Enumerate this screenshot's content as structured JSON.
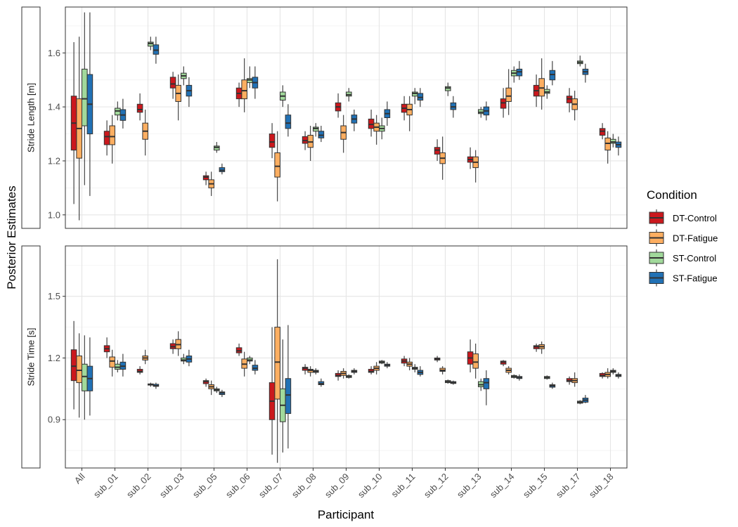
{
  "chart_data": {
    "type": "boxplot",
    "xlabel": "Participant",
    "ylabel": "Posterior Estimates",
    "categories": [
      "All",
      "sub_01",
      "sub_02",
      "sub_03",
      "sub_05",
      "sub_06",
      "sub_07",
      "sub_08",
      "sub_09",
      "sub_10",
      "sub_11",
      "sub_12",
      "sub_13",
      "sub_14",
      "sub_15",
      "sub_17",
      "sub_18"
    ],
    "series_names": [
      "DT-Control",
      "DT-Fatigue",
      "ST-Control",
      "ST-Fatigue"
    ],
    "legend": {
      "title": "Condition",
      "position": "right",
      "entries": [
        {
          "label": "DT-Control",
          "color": "#CB181D"
        },
        {
          "label": "DT-Fatigue",
          "color": "#FDAE61"
        },
        {
          "label": "ST-Control",
          "color": "#A1D99B"
        },
        {
          "label": "ST-Fatigue",
          "color": "#2171B5"
        }
      ]
    },
    "grid": true,
    "panels": [
      {
        "strip_label": "Stride Length [m]",
        "ylim": [
          0.95,
          1.77
        ],
        "yticks": [
          1.0,
          1.2,
          1.4,
          1.6
        ],
        "ytick_labels": [
          "1.0",
          "1.2",
          "1.4",
          "1.6"
        ],
        "boxes": [
          [
            [
              1.04,
              1.24,
              1.34,
              1.44,
              1.64
            ],
            [
              0.98,
              1.21,
              1.32,
              1.43,
              1.66
            ],
            [
              1.11,
              1.33,
              1.43,
              1.54,
              1.75
            ],
            [
              1.07,
              1.3,
              1.41,
              1.52,
              1.75
            ]
          ],
          [
            [
              1.22,
              1.26,
              1.29,
              1.31,
              1.35
            ],
            [
              1.19,
              1.26,
              1.29,
              1.33,
              1.37
            ],
            [
              1.35,
              1.37,
              1.385,
              1.395,
              1.42
            ],
            [
              1.32,
              1.35,
              1.37,
              1.39,
              1.43
            ]
          ],
          [
            [
              1.35,
              1.38,
              1.39,
              1.41,
              1.45
            ],
            [
              1.22,
              1.28,
              1.31,
              1.34,
              1.39
            ],
            [
              1.61,
              1.625,
              1.635,
              1.64,
              1.66
            ],
            [
              1.56,
              1.595,
              1.61,
              1.63,
              1.66
            ]
          ],
          [
            [
              1.43,
              1.47,
              1.485,
              1.51,
              1.53
            ],
            [
              1.35,
              1.42,
              1.45,
              1.48,
              1.52
            ],
            [
              1.48,
              1.505,
              1.515,
              1.525,
              1.55
            ],
            [
              1.4,
              1.44,
              1.46,
              1.48,
              1.51
            ]
          ],
          [
            [
              1.11,
              1.13,
              1.14,
              1.145,
              1.16
            ],
            [
              1.07,
              1.1,
              1.115,
              1.13,
              1.16
            ],
            [
              1.23,
              1.24,
              1.25,
              1.255,
              1.27
            ],
            [
              1.15,
              1.16,
              1.165,
              1.175,
              1.19
            ]
          ],
          [
            [
              1.4,
              1.43,
              1.45,
              1.47,
              1.49
            ],
            [
              1.38,
              1.43,
              1.46,
              1.5,
              1.58
            ],
            [
              1.47,
              1.49,
              1.5,
              1.505,
              1.55
            ],
            [
              1.43,
              1.47,
              1.49,
              1.51,
              1.55
            ]
          ],
          [
            [
              1.21,
              1.25,
              1.27,
              1.3,
              1.34
            ],
            [
              1.05,
              1.14,
              1.18,
              1.23,
              1.31
            ],
            [
              1.4,
              1.425,
              1.44,
              1.455,
              1.48
            ],
            [
              1.29,
              1.32,
              1.34,
              1.37,
              1.41
            ]
          ],
          [
            [
              1.24,
              1.265,
              1.275,
              1.29,
              1.31
            ],
            [
              1.2,
              1.25,
              1.27,
              1.295,
              1.33
            ],
            [
              1.29,
              1.31,
              1.32,
              1.325,
              1.34
            ],
            [
              1.27,
              1.285,
              1.295,
              1.31,
              1.33
            ]
          ],
          [
            [
              1.36,
              1.385,
              1.4,
              1.415,
              1.45
            ],
            [
              1.23,
              1.28,
              1.305,
              1.33,
              1.37
            ],
            [
              1.42,
              1.44,
              1.445,
              1.455,
              1.47
            ],
            [
              1.31,
              1.34,
              1.355,
              1.37,
              1.39
            ]
          ],
          [
            [
              1.29,
              1.32,
              1.335,
              1.355,
              1.39
            ],
            [
              1.26,
              1.31,
              1.325,
              1.34,
              1.37
            ],
            [
              1.28,
              1.31,
              1.32,
              1.33,
              1.36
            ],
            [
              1.33,
              1.36,
              1.375,
              1.39,
              1.42
            ]
          ],
          [
            [
              1.35,
              1.38,
              1.395,
              1.41,
              1.44
            ],
            [
              1.31,
              1.37,
              1.39,
              1.41,
              1.44
            ],
            [
              1.41,
              1.44,
              1.45,
              1.455,
              1.47
            ],
            [
              1.4,
              1.425,
              1.435,
              1.45,
              1.47
            ]
          ],
          [
            [
              1.2,
              1.225,
              1.24,
              1.25,
              1.28
            ],
            [
              1.13,
              1.19,
              1.21,
              1.23,
              1.29
            ],
            [
              1.44,
              1.46,
              1.47,
              1.475,
              1.49
            ],
            [
              1.36,
              1.39,
              1.4,
              1.415,
              1.44
            ]
          ],
          [
            [
              1.17,
              1.195,
              1.205,
              1.215,
              1.25
            ],
            [
              1.12,
              1.175,
              1.195,
              1.215,
              1.24
            ],
            [
              1.36,
              1.375,
              1.38,
              1.39,
              1.4
            ],
            [
              1.35,
              1.37,
              1.385,
              1.4,
              1.42
            ]
          ],
          [
            [
              1.36,
              1.395,
              1.415,
              1.43,
              1.47
            ],
            [
              1.37,
              1.42,
              1.44,
              1.47,
              1.54
            ],
            [
              1.49,
              1.515,
              1.525,
              1.535,
              1.55
            ],
            [
              1.5,
              1.515,
              1.53,
              1.54,
              1.57
            ]
          ],
          [
            [
              1.4,
              1.44,
              1.46,
              1.48,
              1.52
            ],
            [
              1.39,
              1.44,
              1.47,
              1.505,
              1.58
            ],
            [
              1.43,
              1.45,
              1.455,
              1.465,
              1.48
            ],
            [
              1.48,
              1.5,
              1.52,
              1.535,
              1.57
            ]
          ],
          [
            [
              1.38,
              1.415,
              1.43,
              1.44,
              1.47
            ],
            [
              1.35,
              1.39,
              1.41,
              1.43,
              1.46
            ],
            [
              1.55,
              1.56,
              1.565,
              1.57,
              1.59
            ],
            [
              1.49,
              1.52,
              1.53,
              1.54,
              1.56
            ]
          ],
          [
            [
              1.28,
              1.295,
              1.31,
              1.32,
              1.34
            ],
            [
              1.19,
              1.24,
              1.265,
              1.285,
              1.31
            ],
            [
              1.25,
              1.265,
              1.27,
              1.28,
              1.3
            ],
            [
              1.22,
              1.25,
              1.26,
              1.27,
              1.29
            ]
          ]
        ]
      },
      {
        "strip_label": "Stride Time [s]",
        "ylim": [
          0.665,
          1.745
        ],
        "yticks": [
          0.9,
          1.2,
          1.5
        ],
        "ytick_labels": [
          "0.9",
          "1.2",
          "1.5"
        ],
        "boxes": [
          [
            [
              0.95,
              1.09,
              1.16,
              1.24,
              1.38
            ],
            [
              0.91,
              1.08,
              1.14,
              1.21,
              1.32
            ],
            [
              0.9,
              1.04,
              1.11,
              1.17,
              1.31
            ],
            [
              0.92,
              1.04,
              1.1,
              1.16,
              1.3
            ]
          ],
          [
            [
              1.2,
              1.23,
              1.245,
              1.26,
              1.3
            ],
            [
              1.11,
              1.155,
              1.185,
              1.205,
              1.24
            ],
            [
              1.13,
              1.145,
              1.155,
              1.17,
              1.19
            ],
            [
              1.11,
              1.145,
              1.16,
              1.18,
              1.22
            ]
          ],
          [
            [
              1.12,
              1.13,
              1.135,
              1.145,
              1.16
            ],
            [
              1.17,
              1.19,
              1.2,
              1.21,
              1.24
            ],
            [
              1.06,
              1.068,
              1.07,
              1.074,
              1.08
            ],
            [
              1.05,
              1.062,
              1.065,
              1.072,
              1.08
            ]
          ],
          [
            [
              1.22,
              1.245,
              1.255,
              1.27,
              1.29
            ],
            [
              1.21,
              1.245,
              1.265,
              1.29,
              1.33
            ],
            [
              1.17,
              1.185,
              1.19,
              1.2,
              1.22
            ],
            [
              1.16,
              1.18,
              1.195,
              1.21,
              1.24
            ]
          ],
          [
            [
              1.06,
              1.075,
              1.085,
              1.09,
              1.1
            ],
            [
              1.02,
              1.05,
              1.06,
              1.07,
              1.09
            ],
            [
              1.03,
              1.04,
              1.045,
              1.05,
              1.06
            ],
            [
              1.01,
              1.022,
              1.03,
              1.035,
              1.045
            ]
          ],
          [
            [
              1.21,
              1.225,
              1.235,
              1.25,
              1.27
            ],
            [
              1.11,
              1.15,
              1.17,
              1.195,
              1.23
            ],
            [
              1.17,
              1.185,
              1.19,
              1.2,
              1.21
            ],
            [
              1.12,
              1.14,
              1.15,
              1.165,
              1.19
            ]
          ],
          [
            [
              0.73,
              0.9,
              0.99,
              1.08,
              1.35
            ],
            [
              0.69,
              1.0,
              1.18,
              1.35,
              1.68
            ],
            [
              0.74,
              0.89,
              0.97,
              1.05,
              1.29
            ],
            [
              0.76,
              0.93,
              1.02,
              1.1,
              1.36
            ]
          ],
          [
            [
              1.12,
              1.14,
              1.15,
              1.155,
              1.17
            ],
            [
              1.11,
              1.13,
              1.14,
              1.145,
              1.16
            ],
            [
              1.12,
              1.13,
              1.135,
              1.14,
              1.15
            ],
            [
              1.06,
              1.07,
              1.075,
              1.085,
              1.1
            ]
          ],
          [
            [
              1.09,
              1.11,
              1.115,
              1.125,
              1.14
            ],
            [
              1.1,
              1.115,
              1.125,
              1.135,
              1.15
            ],
            [
              1.1,
              1.105,
              1.11,
              1.115,
              1.12
            ],
            [
              1.12,
              1.13,
              1.135,
              1.14,
              1.15
            ]
          ],
          [
            [
              1.12,
              1.13,
              1.135,
              1.145,
              1.16
            ],
            [
              1.12,
              1.14,
              1.15,
              1.16,
              1.18
            ],
            [
              1.17,
              1.175,
              1.18,
              1.185,
              1.19
            ],
            [
              1.15,
              1.16,
              1.165,
              1.17,
              1.18
            ]
          ],
          [
            [
              1.16,
              1.175,
              1.185,
              1.195,
              1.21
            ],
            [
              1.14,
              1.16,
              1.17,
              1.18,
              1.2
            ],
            [
              1.13,
              1.145,
              1.15,
              1.155,
              1.17
            ],
            [
              1.11,
              1.12,
              1.13,
              1.14,
              1.16
            ]
          ],
          [
            [
              1.18,
              1.19,
              1.195,
              1.2,
              1.21
            ],
            [
              1.12,
              1.135,
              1.14,
              1.15,
              1.16
            ],
            [
              1.075,
              1.08,
              1.085,
              1.09,
              1.095
            ],
            [
              1.07,
              1.076,
              1.08,
              1.085,
              1.09
            ]
          ],
          [
            [
              1.13,
              1.17,
              1.2,
              1.23,
              1.29
            ],
            [
              1.1,
              1.15,
              1.18,
              1.22,
              1.27
            ],
            [
              1.04,
              1.06,
              1.07,
              1.085,
              1.1
            ],
            [
              0.97,
              1.05,
              1.08,
              1.1,
              1.14
            ]
          ],
          [
            [
              1.16,
              1.17,
              1.18,
              1.185,
              1.19
            ],
            [
              1.12,
              1.13,
              1.14,
              1.15,
              1.16
            ],
            [
              1.1,
              1.105,
              1.11,
              1.115,
              1.12
            ],
            [
              1.09,
              1.1,
              1.105,
              1.11,
              1.12
            ]
          ],
          [
            [
              1.23,
              1.245,
              1.255,
              1.26,
              1.27
            ],
            [
              1.22,
              1.245,
              1.255,
              1.265,
              1.28
            ],
            [
              1.095,
              1.1,
              1.105,
              1.11,
              1.115
            ],
            [
              1.05,
              1.058,
              1.065,
              1.07,
              1.08
            ]
          ],
          [
            [
              1.07,
              1.085,
              1.09,
              1.1,
              1.11
            ],
            [
              1.06,
              1.08,
              1.09,
              1.1,
              1.13
            ],
            [
              0.975,
              0.98,
              0.985,
              0.99,
              0.995
            ],
            [
              0.98,
              0.985,
              0.995,
              1.005,
              1.02
            ]
          ],
          [
            [
              1.1,
              1.11,
              1.115,
              1.125,
              1.13
            ],
            [
              1.1,
              1.11,
              1.12,
              1.13,
              1.15
            ],
            [
              1.12,
              1.13,
              1.135,
              1.14,
              1.15
            ],
            [
              1.1,
              1.11,
              1.115,
              1.12,
              1.13
            ]
          ]
        ]
      }
    ]
  }
}
